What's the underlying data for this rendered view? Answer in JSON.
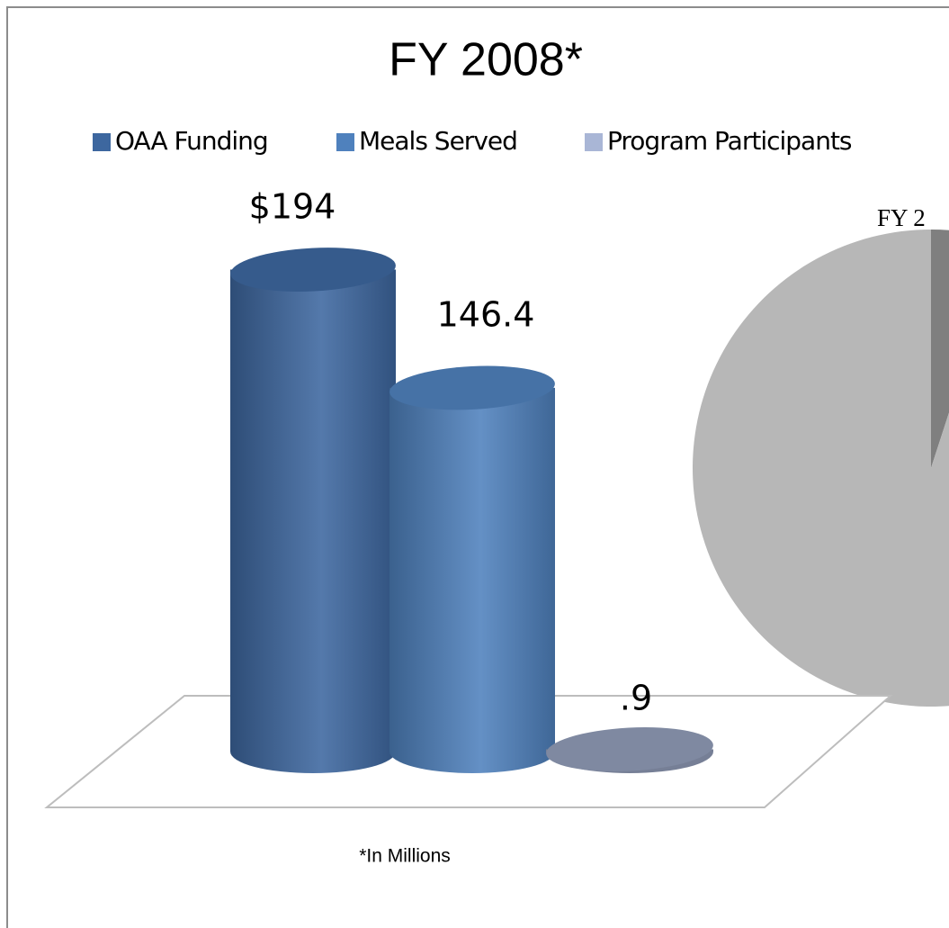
{
  "chart_data": [
    {
      "type": "bar",
      "title": "FY 2008*",
      "series": [
        {
          "name": "OAA Funding",
          "color": "#3d679f",
          "values": [
            194
          ],
          "value_labels": [
            "$194"
          ]
        },
        {
          "name": "Meals Served",
          "color": "#4f81bd",
          "values": [
            146.4
          ],
          "value_labels": [
            "146.4"
          ]
        },
        {
          "name": "Program Participants",
          "color": "#a9b6d6",
          "values": [
            0.9
          ],
          "value_labels": [
            ".9"
          ]
        }
      ],
      "footnote": "*In Millions"
    },
    {
      "type": "pie",
      "title": "FY 2",
      "values": [
        5,
        95
      ],
      "colors": [
        "#7f7f7f",
        "#b7b7b7"
      ]
    }
  ]
}
